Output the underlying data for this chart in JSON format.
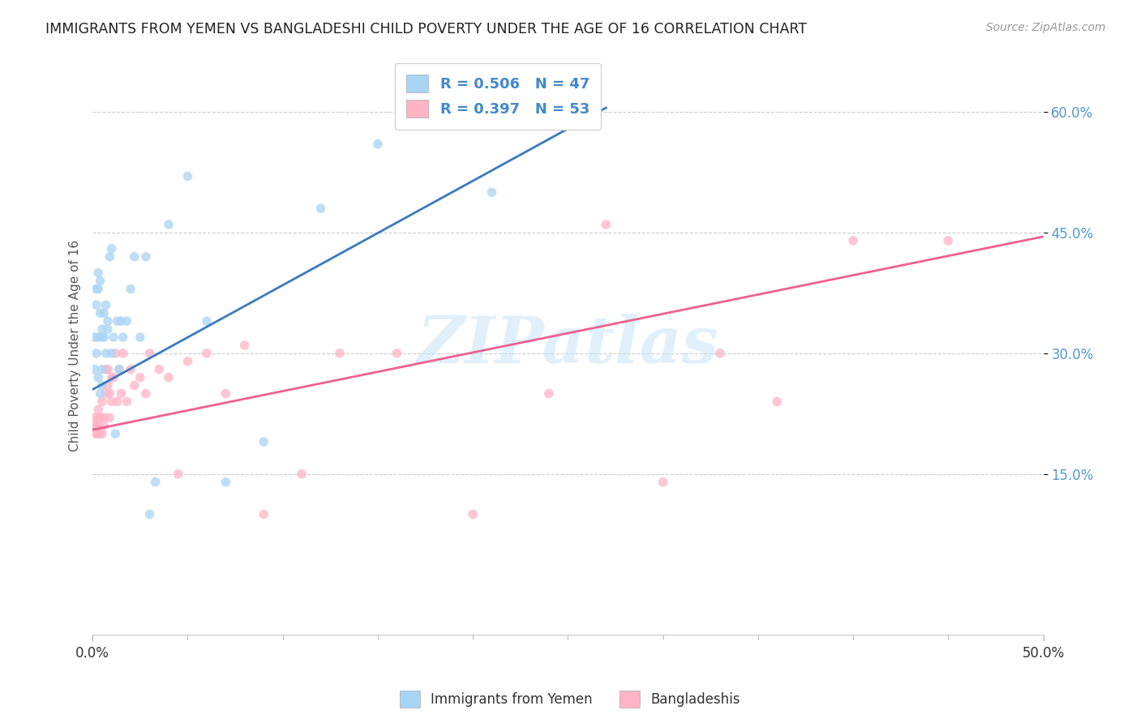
{
  "title": "IMMIGRANTS FROM YEMEN VS BANGLADESHI CHILD POVERTY UNDER THE AGE OF 16 CORRELATION CHART",
  "source": "Source: ZipAtlas.com",
  "ylabel": "Child Poverty Under the Age of 16",
  "y_ticks_labels": [
    "15.0%",
    "30.0%",
    "45.0%",
    "60.0%"
  ],
  "y_tick_vals": [
    0.15,
    0.3,
    0.45,
    0.6
  ],
  "xlim": [
    0.0,
    0.5
  ],
  "ylim": [
    -0.05,
    0.67
  ],
  "legend_label1": "Immigrants from Yemen",
  "legend_label2": "Bangladeshis",
  "r1": "0.506",
  "n1": "47",
  "r2": "0.397",
  "n2": "53",
  "color_blue": "#a8d4f5",
  "color_pink": "#ffb3c6",
  "color_line_blue": "#3a7abf",
  "color_line_pink": "#f06090",
  "watermark": "ZIPatlas",
  "title_fontsize": 12.5,
  "source_fontsize": 10,
  "ylabel_fontsize": 11,
  "scatter_alpha": 0.75,
  "scatter_size": 70,
  "blue_x": [
    0.001,
    0.001,
    0.002,
    0.002,
    0.002,
    0.003,
    0.003,
    0.003,
    0.003,
    0.004,
    0.004,
    0.004,
    0.005,
    0.005,
    0.005,
    0.005,
    0.006,
    0.006,
    0.007,
    0.007,
    0.008,
    0.008,
    0.009,
    0.01,
    0.01,
    0.011,
    0.012,
    0.013,
    0.014,
    0.015,
    0.016,
    0.018,
    0.02,
    0.022,
    0.025,
    0.028,
    0.03,
    0.033,
    0.04,
    0.05,
    0.06,
    0.07,
    0.09,
    0.12,
    0.15,
    0.21,
    0.26
  ],
  "blue_y": [
    0.28,
    0.32,
    0.3,
    0.36,
    0.38,
    0.27,
    0.32,
    0.38,
    0.4,
    0.25,
    0.35,
    0.39,
    0.28,
    0.26,
    0.32,
    0.33,
    0.32,
    0.35,
    0.3,
    0.36,
    0.33,
    0.34,
    0.42,
    0.3,
    0.43,
    0.32,
    0.2,
    0.34,
    0.28,
    0.34,
    0.32,
    0.34,
    0.38,
    0.42,
    0.32,
    0.42,
    0.1,
    0.14,
    0.46,
    0.52,
    0.34,
    0.14,
    0.19,
    0.48,
    0.56,
    0.5,
    0.61
  ],
  "pink_x": [
    0.001,
    0.001,
    0.002,
    0.002,
    0.002,
    0.003,
    0.003,
    0.003,
    0.004,
    0.004,
    0.005,
    0.005,
    0.006,
    0.006,
    0.007,
    0.007,
    0.008,
    0.008,
    0.009,
    0.009,
    0.01,
    0.01,
    0.011,
    0.012,
    0.013,
    0.014,
    0.015,
    0.016,
    0.018,
    0.02,
    0.022,
    0.025,
    0.028,
    0.03,
    0.035,
    0.04,
    0.045,
    0.05,
    0.06,
    0.07,
    0.08,
    0.09,
    0.11,
    0.13,
    0.16,
    0.2,
    0.24,
    0.27,
    0.3,
    0.33,
    0.36,
    0.4,
    0.45
  ],
  "pink_y": [
    0.21,
    0.22,
    0.2,
    0.21,
    0.2,
    0.22,
    0.23,
    0.21,
    0.2,
    0.22,
    0.2,
    0.24,
    0.21,
    0.22,
    0.25,
    0.28,
    0.26,
    0.28,
    0.25,
    0.22,
    0.27,
    0.24,
    0.27,
    0.3,
    0.24,
    0.28,
    0.25,
    0.3,
    0.24,
    0.28,
    0.26,
    0.27,
    0.25,
    0.3,
    0.28,
    0.27,
    0.15,
    0.29,
    0.3,
    0.25,
    0.31,
    0.1,
    0.15,
    0.3,
    0.3,
    0.1,
    0.25,
    0.46,
    0.14,
    0.3,
    0.24,
    0.44,
    0.44
  ],
  "blue_trend_x": [
    0.0,
    0.27
  ],
  "blue_trend_y": [
    0.255,
    0.605
  ],
  "pink_trend_x": [
    0.0,
    0.5
  ],
  "pink_trend_y": [
    0.205,
    0.445
  ],
  "background_color": "#ffffff",
  "grid_color": "#cccccc"
}
